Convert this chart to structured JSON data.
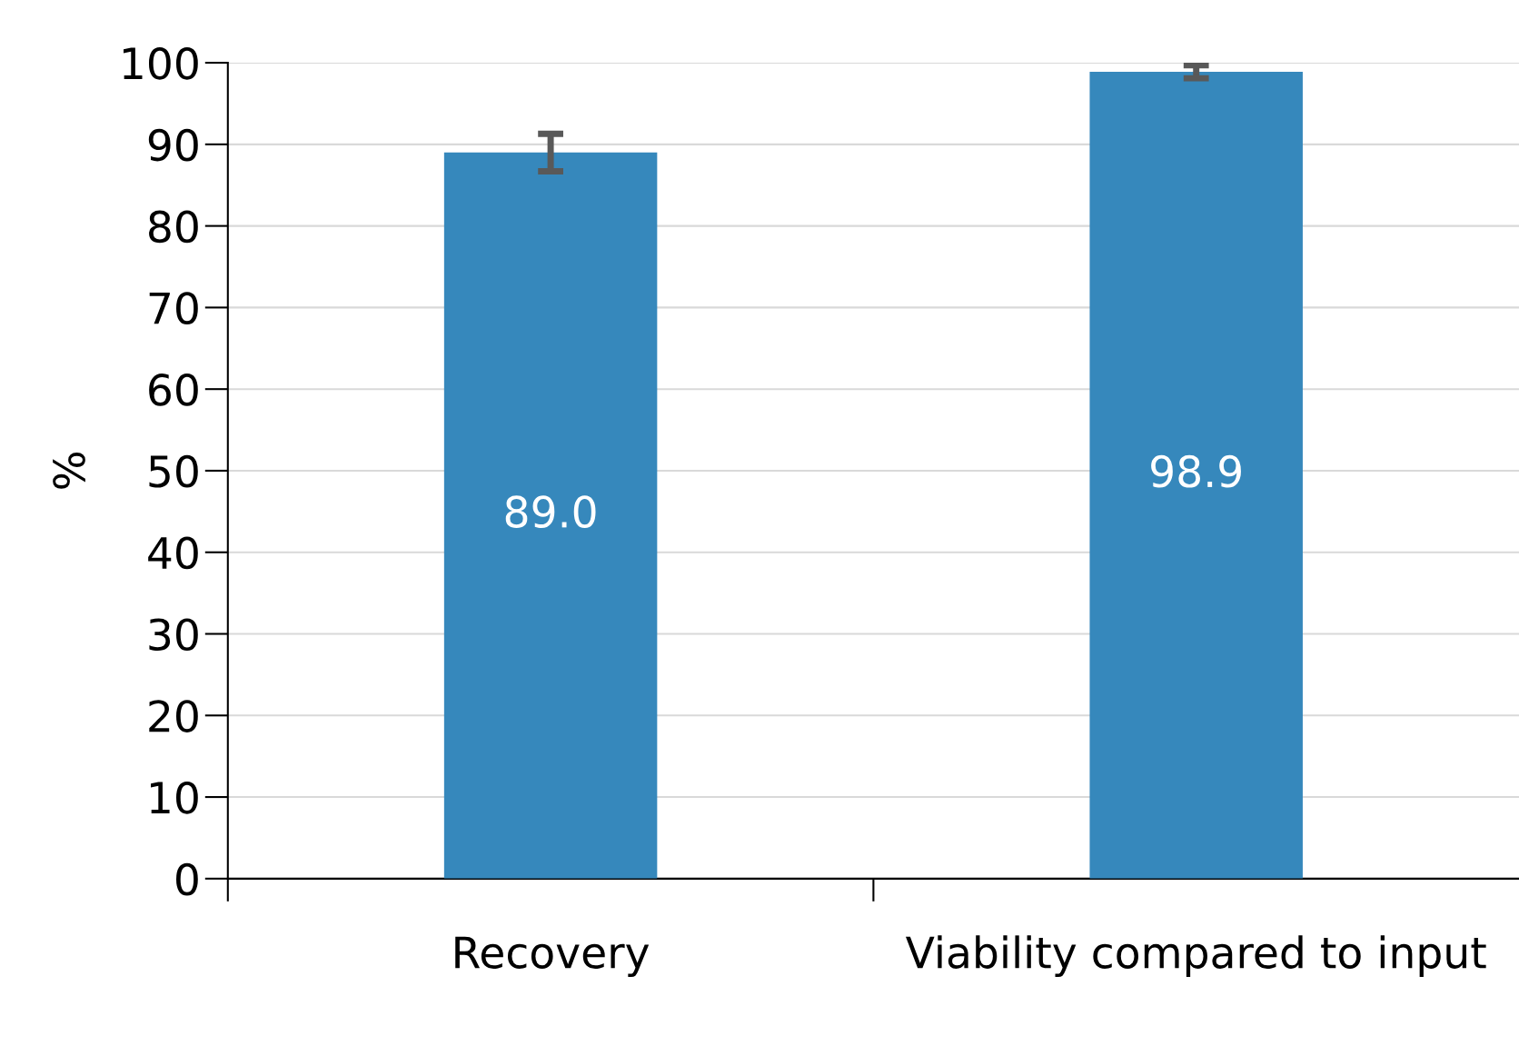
{
  "chart_data": {
    "type": "bar",
    "ylabel": "%",
    "categories": [
      "Recovery",
      "Viability compared to input"
    ],
    "values": [
      89.0,
      98.9
    ],
    "errors": [
      2.3,
      0.8
    ],
    "color": "#3688bc",
    "value_labels": [
      "89.0",
      "98.9"
    ],
    "ylim": [
      0,
      100
    ],
    "yticks": [
      0,
      10,
      20,
      30,
      40,
      50,
      60,
      70,
      80,
      90,
      100
    ],
    "grid": "y"
  }
}
